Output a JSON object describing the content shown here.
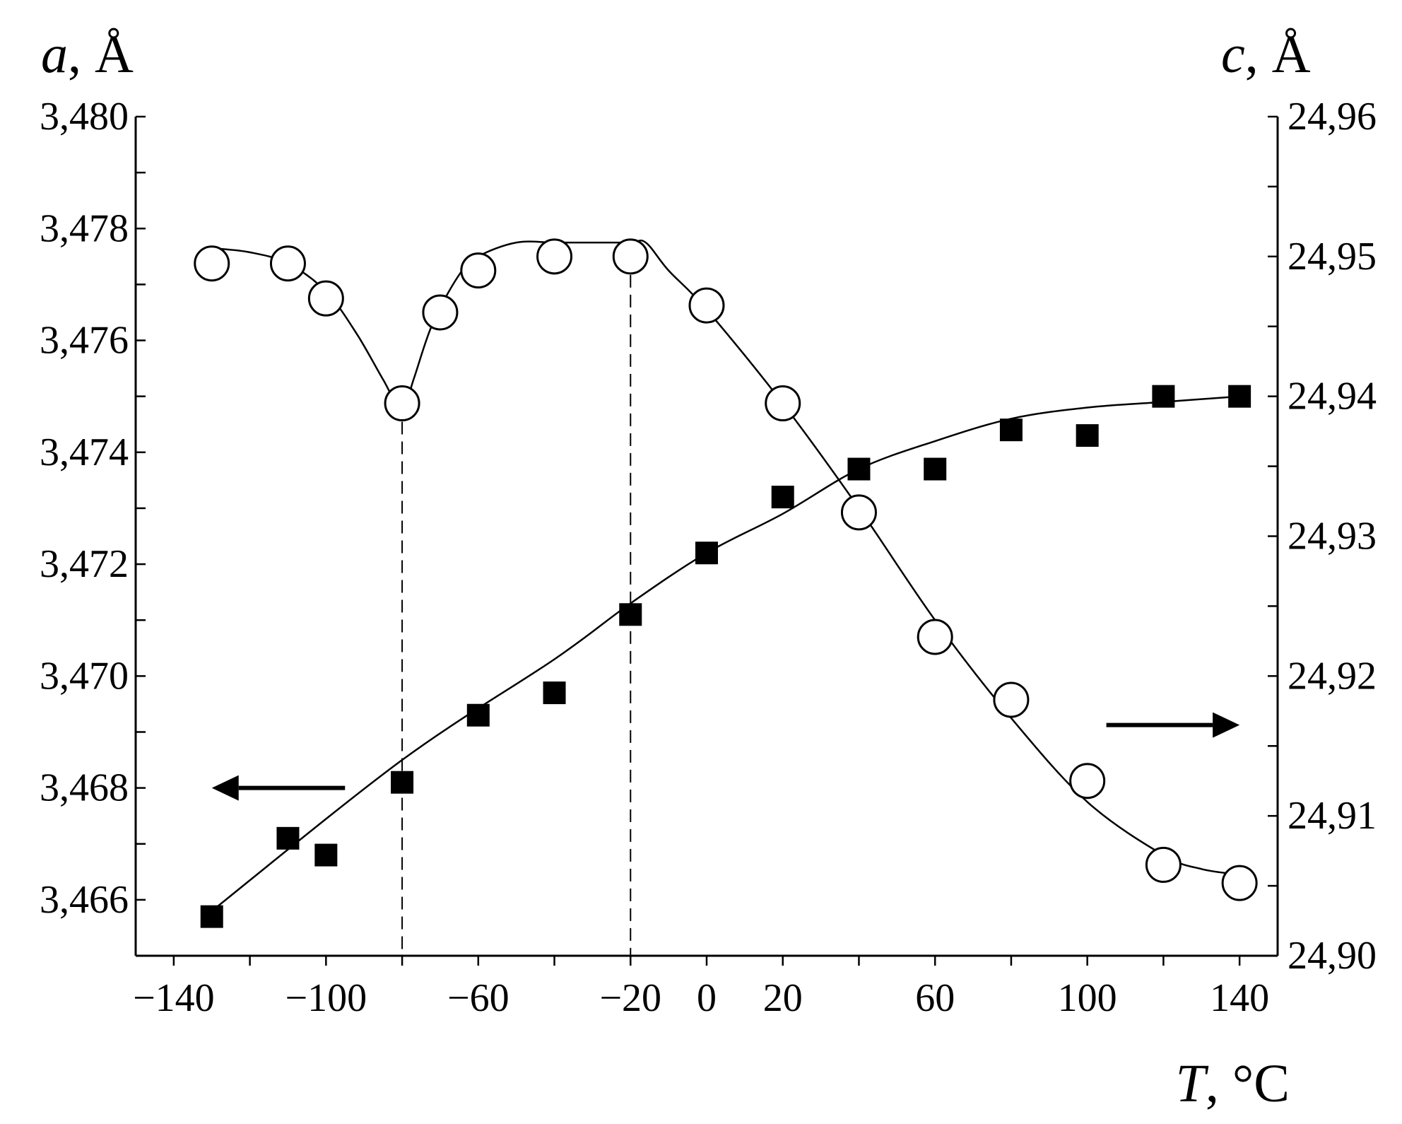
{
  "chart_data": {
    "type": "scatter",
    "x_axis": {
      "title_var": "T",
      "title_unit": ", °C",
      "range": [
        -150,
        150
      ],
      "tick_labels": [
        "−140",
        "−100",
        "−60",
        "−20",
        "0",
        "20",
        "60",
        "100",
        "140"
      ],
      "tick_values": [
        -140,
        -100,
        -60,
        -20,
        0,
        20,
        60,
        100,
        140
      ],
      "minor_ticks": [
        -140,
        -120,
        -100,
        -80,
        -60,
        -40,
        -20,
        0,
        20,
        40,
        60,
        80,
        100,
        120,
        140
      ]
    },
    "y_left": {
      "title_var": "a",
      "title_unit": ", Å",
      "range": [
        3.465,
        3.48
      ],
      "tick_labels": [
        "3,466",
        "3,468",
        "3,470",
        "3,472",
        "3,474",
        "3,476",
        "3,478",
        "3,480"
      ],
      "tick_values": [
        3.466,
        3.468,
        3.47,
        3.472,
        3.474,
        3.476,
        3.478,
        3.48
      ]
    },
    "y_right": {
      "title_var": "c",
      "title_unit": ", Å",
      "range": [
        24.9,
        24.96
      ],
      "tick_labels": [
        "24,90",
        "24,91",
        "24,92",
        "24,93",
        "24,94",
        "24,95",
        "24,96"
      ],
      "tick_values": [
        24.9,
        24.91,
        24.92,
        24.93,
        24.94,
        24.95,
        24.96
      ]
    },
    "series": [
      {
        "axis": "left",
        "marker": "filled-square",
        "points": [
          [
            -130,
            3.4657
          ],
          [
            -110,
            3.4671
          ],
          [
            -100,
            3.4668
          ],
          [
            -80,
            3.4681
          ],
          [
            -60,
            3.4693
          ],
          [
            -40,
            3.4697
          ],
          [
            -20,
            3.4711
          ],
          [
            0,
            3.4722
          ],
          [
            20,
            3.4732
          ],
          [
            40,
            3.4737
          ],
          [
            60,
            3.4737
          ],
          [
            80,
            3.4744
          ],
          [
            100,
            3.4743
          ],
          [
            120,
            3.475
          ],
          [
            140,
            3.475
          ]
        ],
        "fit_curve": [
          [
            -130,
            3.4658
          ],
          [
            -80,
            3.4685
          ],
          [
            -40,
            3.4703
          ],
          [
            -20,
            3.4713
          ],
          [
            0,
            3.4722
          ],
          [
            20,
            3.4729
          ],
          [
            40,
            3.4737
          ],
          [
            60,
            3.4742
          ],
          [
            80,
            3.4746
          ],
          [
            100,
            3.4748
          ],
          [
            120,
            3.4749
          ],
          [
            140,
            3.475
          ]
        ]
      },
      {
        "axis": "right",
        "marker": "open-circle",
        "points": [
          [
            -130,
            24.9495
          ],
          [
            -110,
            24.9495
          ],
          [
            -100,
            24.947
          ],
          [
            -80,
            24.9395
          ],
          [
            -70,
            24.946
          ],
          [
            -60,
            24.949
          ],
          [
            -40,
            24.95
          ],
          [
            -20,
            24.95
          ],
          [
            0,
            24.9465
          ],
          [
            20,
            24.9395
          ],
          [
            40,
            24.9317
          ],
          [
            60,
            24.9228
          ],
          [
            80,
            24.9183
          ],
          [
            100,
            24.9125
          ],
          [
            120,
            24.9065
          ],
          [
            140,
            24.9052
          ]
        ],
        "fit_curve": [
          [
            -130,
            24.9506
          ],
          [
            -120,
            24.9503
          ],
          [
            -110,
            24.9495
          ],
          [
            -100,
            24.9475
          ],
          [
            -92,
            24.9445
          ],
          [
            -85,
            24.9412
          ],
          [
            -80,
            24.939
          ],
          [
            -77,
            24.9412
          ],
          [
            -72,
            24.9452
          ],
          [
            -65,
            24.9487
          ],
          [
            -60,
            24.95
          ],
          [
            -50,
            24.951
          ],
          [
            -40,
            24.951
          ],
          [
            -30,
            24.951
          ],
          [
            -20,
            24.951
          ],
          [
            -16,
            24.951
          ],
          [
            -10,
            24.949
          ],
          [
            0,
            24.9462
          ],
          [
            20,
            24.9395
          ],
          [
            40,
            24.932
          ],
          [
            60,
            24.924
          ],
          [
            80,
            24.917
          ],
          [
            100,
            24.911
          ],
          [
            120,
            24.9072
          ],
          [
            130,
            24.9062
          ],
          [
            140,
            24.9058
          ]
        ]
      }
    ],
    "dashed_lines": [
      -80,
      -20
    ],
    "arrows": [
      {
        "direction": "left",
        "axis": "left",
        "x_from": -95,
        "x_to": -130,
        "y": 3.468
      },
      {
        "direction": "right",
        "axis": "right",
        "x_from": 105,
        "x_to": 140,
        "y": 24.9165
      }
    ]
  }
}
